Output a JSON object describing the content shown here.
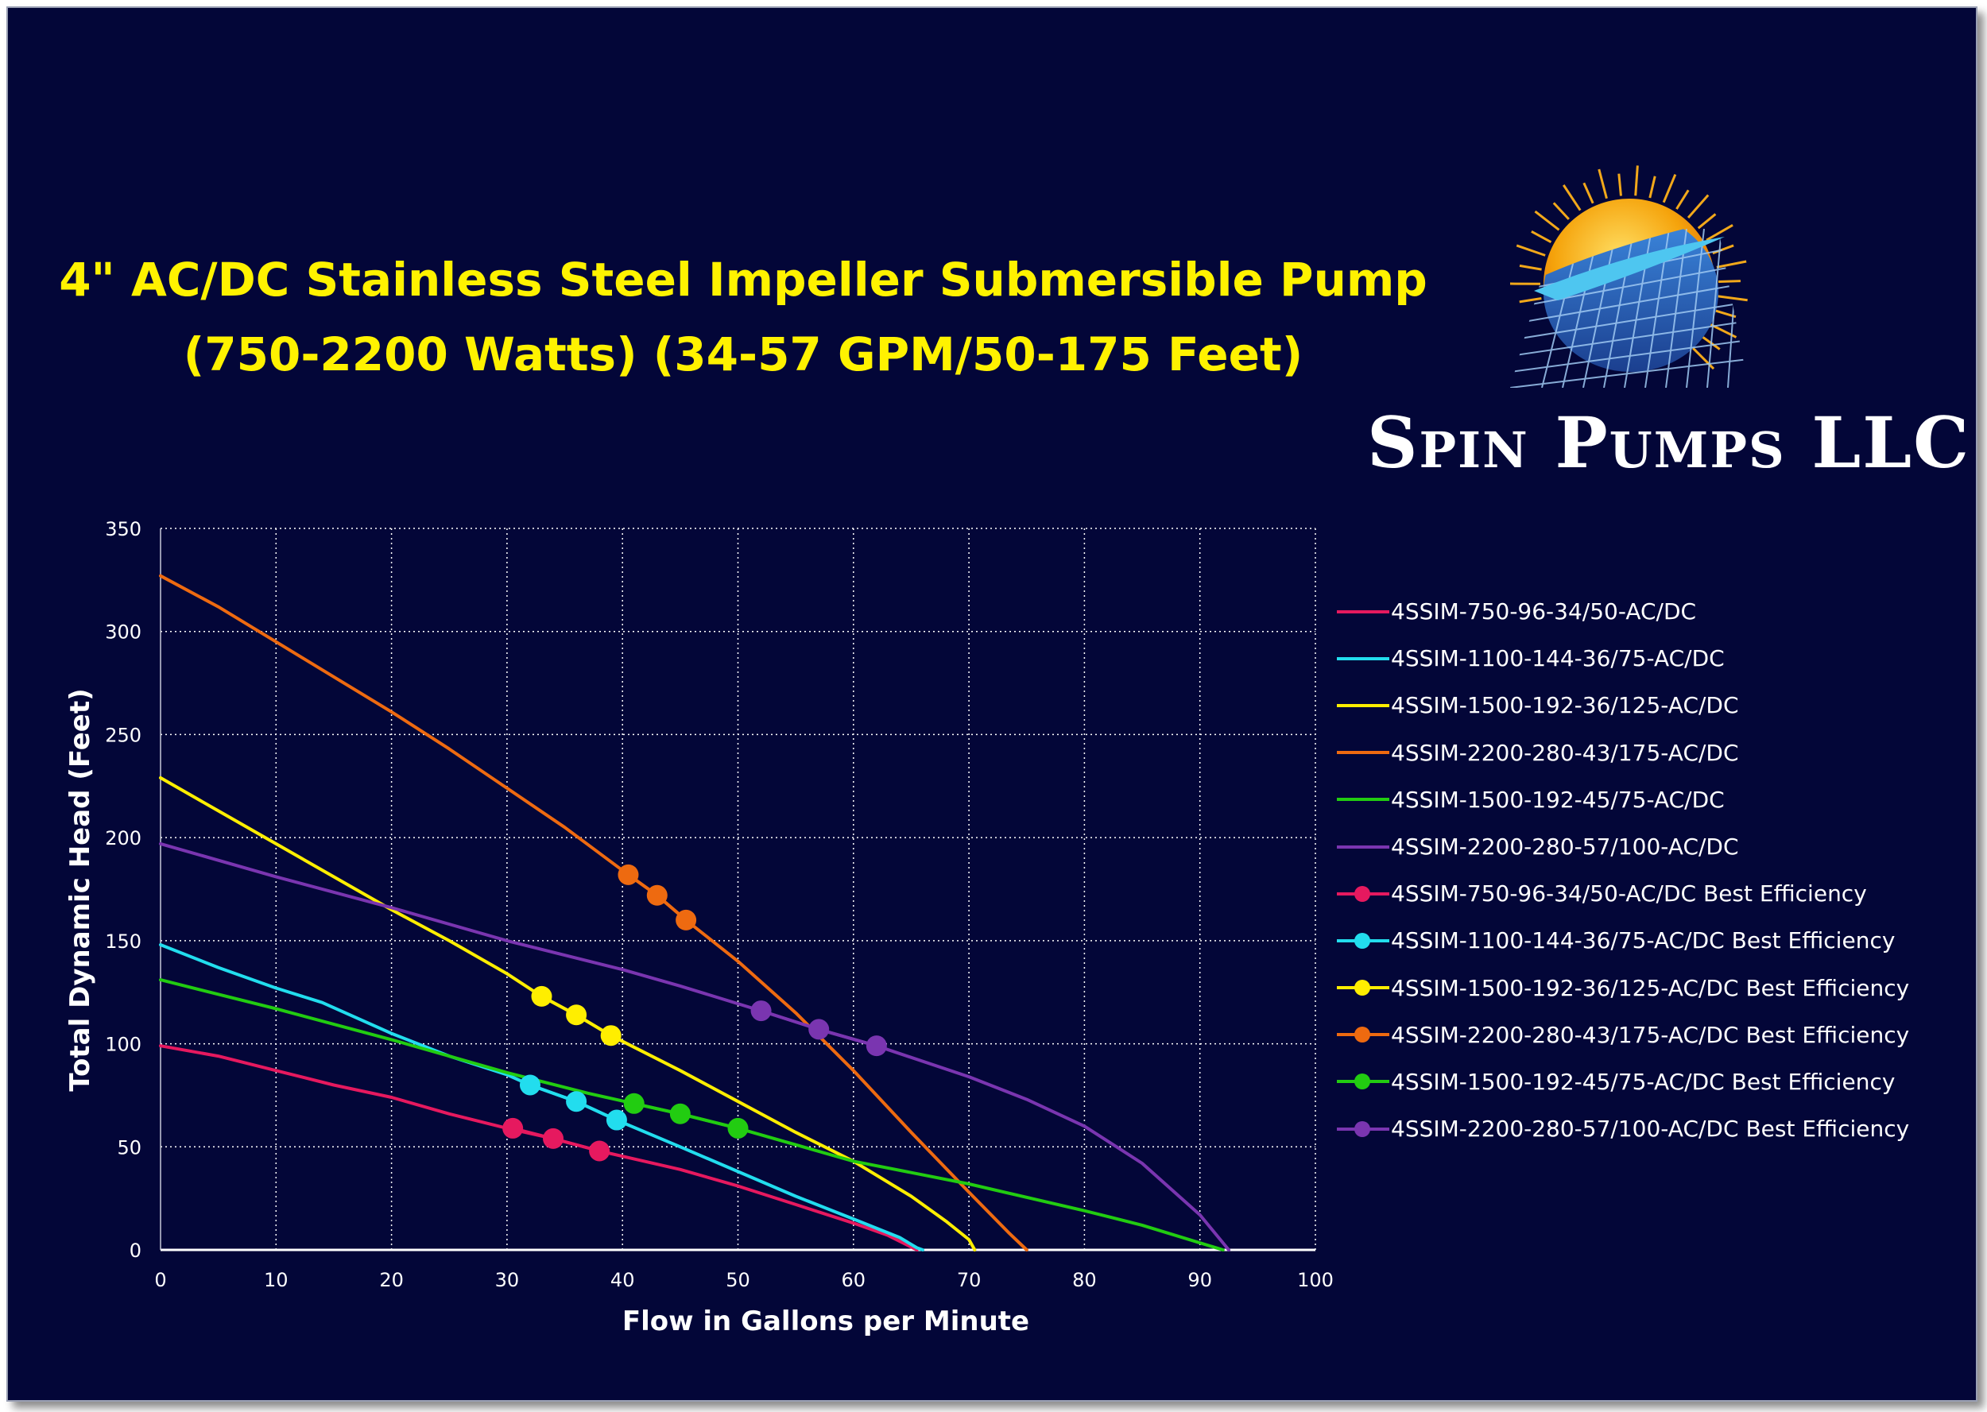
{
  "title": {
    "line1": "4\" AC/DC Stainless Steel Impeller Submersible Pump",
    "line2": "(750-2200 Watts) (34-57 GPM/50-175 Feet)"
  },
  "brand": {
    "name": "Spin Pumps LLC",
    "logo_icon": "sun-solar-panel-logo-icon",
    "colors": {
      "sun": "#f5a30b",
      "panel": "#2a6fc0",
      "swoosh": "#4ec6f0"
    }
  },
  "chart_data": {
    "type": "line",
    "xlabel": "Flow in Gallons per Minute",
    "ylabel": "Total Dynamic Head (Feet)",
    "xlim": [
      0,
      100
    ],
    "ylim": [
      0,
      350
    ],
    "xticks": [
      0,
      10,
      20,
      30,
      40,
      50,
      60,
      70,
      80,
      90,
      100
    ],
    "yticks": [
      0,
      50,
      100,
      150,
      200,
      250,
      300,
      350
    ],
    "grid": true,
    "grid_style": "dotted",
    "legend_position": "right",
    "series": [
      {
        "name": "4SSIM-750-96-34/50-AC/DC",
        "color": "#e6195f",
        "points": [
          [
            0,
            99
          ],
          [
            5,
            94
          ],
          [
            10,
            87
          ],
          [
            15,
            80
          ],
          [
            20,
            74
          ],
          [
            25,
            66
          ],
          [
            30,
            59
          ],
          [
            34,
            54
          ],
          [
            38,
            48
          ],
          [
            45,
            39
          ],
          [
            50,
            31
          ],
          [
            55,
            22
          ],
          [
            60,
            13
          ],
          [
            63,
            7
          ],
          [
            65.5,
            0
          ]
        ]
      },
      {
        "name": "4SSIM-1100-144-36/75-AC/DC",
        "color": "#22ddee",
        "points": [
          [
            0,
            148
          ],
          [
            5,
            137
          ],
          [
            10,
            127
          ],
          [
            14,
            120
          ],
          [
            20,
            105
          ],
          [
            25,
            94
          ],
          [
            30,
            85
          ],
          [
            32,
            80
          ],
          [
            36,
            72
          ],
          [
            39.5,
            63
          ],
          [
            45,
            50
          ],
          [
            50,
            38
          ],
          [
            55,
            26
          ],
          [
            60,
            15
          ],
          [
            64,
            6
          ],
          [
            65.5,
            1
          ],
          [
            66,
            0
          ]
        ]
      },
      {
        "name": "4SSIM-1500-192-36/125-AC/DC",
        "color": "#ffee00",
        "points": [
          [
            0,
            229
          ],
          [
            5,
            213
          ],
          [
            10,
            197
          ],
          [
            15,
            181
          ],
          [
            20,
            165
          ],
          [
            25,
            150
          ],
          [
            30,
            134
          ],
          [
            33,
            123
          ],
          [
            36,
            114
          ],
          [
            39,
            104
          ],
          [
            45,
            87
          ],
          [
            50,
            72
          ],
          [
            55,
            57
          ],
          [
            60,
            43
          ],
          [
            65,
            26
          ],
          [
            68,
            14
          ],
          [
            70,
            5
          ],
          [
            70.5,
            0
          ]
        ]
      },
      {
        "name": "4SSIM-2200-280-43/175-AC/DC",
        "color": "#ee6a10",
        "points": [
          [
            0,
            327
          ],
          [
            5,
            312
          ],
          [
            10,
            295
          ],
          [
            15,
            278
          ],
          [
            20,
            261
          ],
          [
            25,
            243
          ],
          [
            30,
            224
          ],
          [
            35,
            205
          ],
          [
            40.5,
            182
          ],
          [
            43,
            172
          ],
          [
            45.5,
            160
          ],
          [
            50,
            140
          ],
          [
            55,
            115
          ],
          [
            60,
            87
          ],
          [
            65,
            57
          ],
          [
            70,
            28
          ],
          [
            73.5,
            8
          ],
          [
            75,
            0
          ]
        ]
      },
      {
        "name": "4SSIM-1500-192-45/75-AC/DC",
        "color": "#22cc11",
        "points": [
          [
            0,
            131
          ],
          [
            10,
            117
          ],
          [
            20,
            102
          ],
          [
            30,
            86
          ],
          [
            37,
            76
          ],
          [
            41,
            71
          ],
          [
            45,
            66
          ],
          [
            50,
            59
          ],
          [
            55,
            51
          ],
          [
            60,
            43
          ],
          [
            70,
            32
          ],
          [
            80,
            19
          ],
          [
            85,
            12
          ],
          [
            92,
            0
          ]
        ]
      },
      {
        "name": "4SSIM-2200-280-57/100-AC/DC",
        "color": "#7a35b0",
        "points": [
          [
            0,
            197
          ],
          [
            10,
            181
          ],
          [
            20,
            166
          ],
          [
            30,
            150
          ],
          [
            40,
            136
          ],
          [
            45,
            128
          ],
          [
            52,
            116
          ],
          [
            57,
            107
          ],
          [
            62,
            99
          ],
          [
            70,
            84
          ],
          [
            75,
            73
          ],
          [
            80,
            60
          ],
          [
            85,
            42
          ],
          [
            90,
            17
          ],
          [
            92.5,
            0
          ]
        ]
      }
    ],
    "best_efficiency": [
      {
        "name": "4SSIM-750-96-34/50-AC/DC Best Efficiency",
        "color": "#e6195f",
        "points": [
          [
            30.5,
            59
          ],
          [
            34,
            54
          ],
          [
            38,
            48
          ]
        ]
      },
      {
        "name": "4SSIM-1100-144-36/75-AC/DC Best Efficiency",
        "color": "#22ddee",
        "points": [
          [
            32,
            80
          ],
          [
            36,
            72
          ],
          [
            39.5,
            63
          ]
        ]
      },
      {
        "name": "4SSIM-1500-192-36/125-AC/DC Best Efficiency",
        "color": "#ffee00",
        "points": [
          [
            33,
            123
          ],
          [
            36,
            114
          ],
          [
            39,
            104
          ]
        ]
      },
      {
        "name": "4SSIM-2200-280-43/175-AC/DC Best Efficiency",
        "color": "#ee6a10",
        "points": [
          [
            40.5,
            182
          ],
          [
            43,
            172
          ],
          [
            45.5,
            160
          ]
        ]
      },
      {
        "name": "4SSIM-1500-192-45/75-AC/DC Best Efficiency",
        "color": "#22cc11",
        "points": [
          [
            41,
            71
          ],
          [
            45,
            66
          ],
          [
            50,
            59
          ]
        ]
      },
      {
        "name": "4SSIM-2200-280-57/100-AC/DC Best Efficiency",
        "color": "#7a35b0",
        "points": [
          [
            52,
            116
          ],
          [
            57,
            107
          ],
          [
            62,
            99
          ]
        ]
      }
    ]
  }
}
